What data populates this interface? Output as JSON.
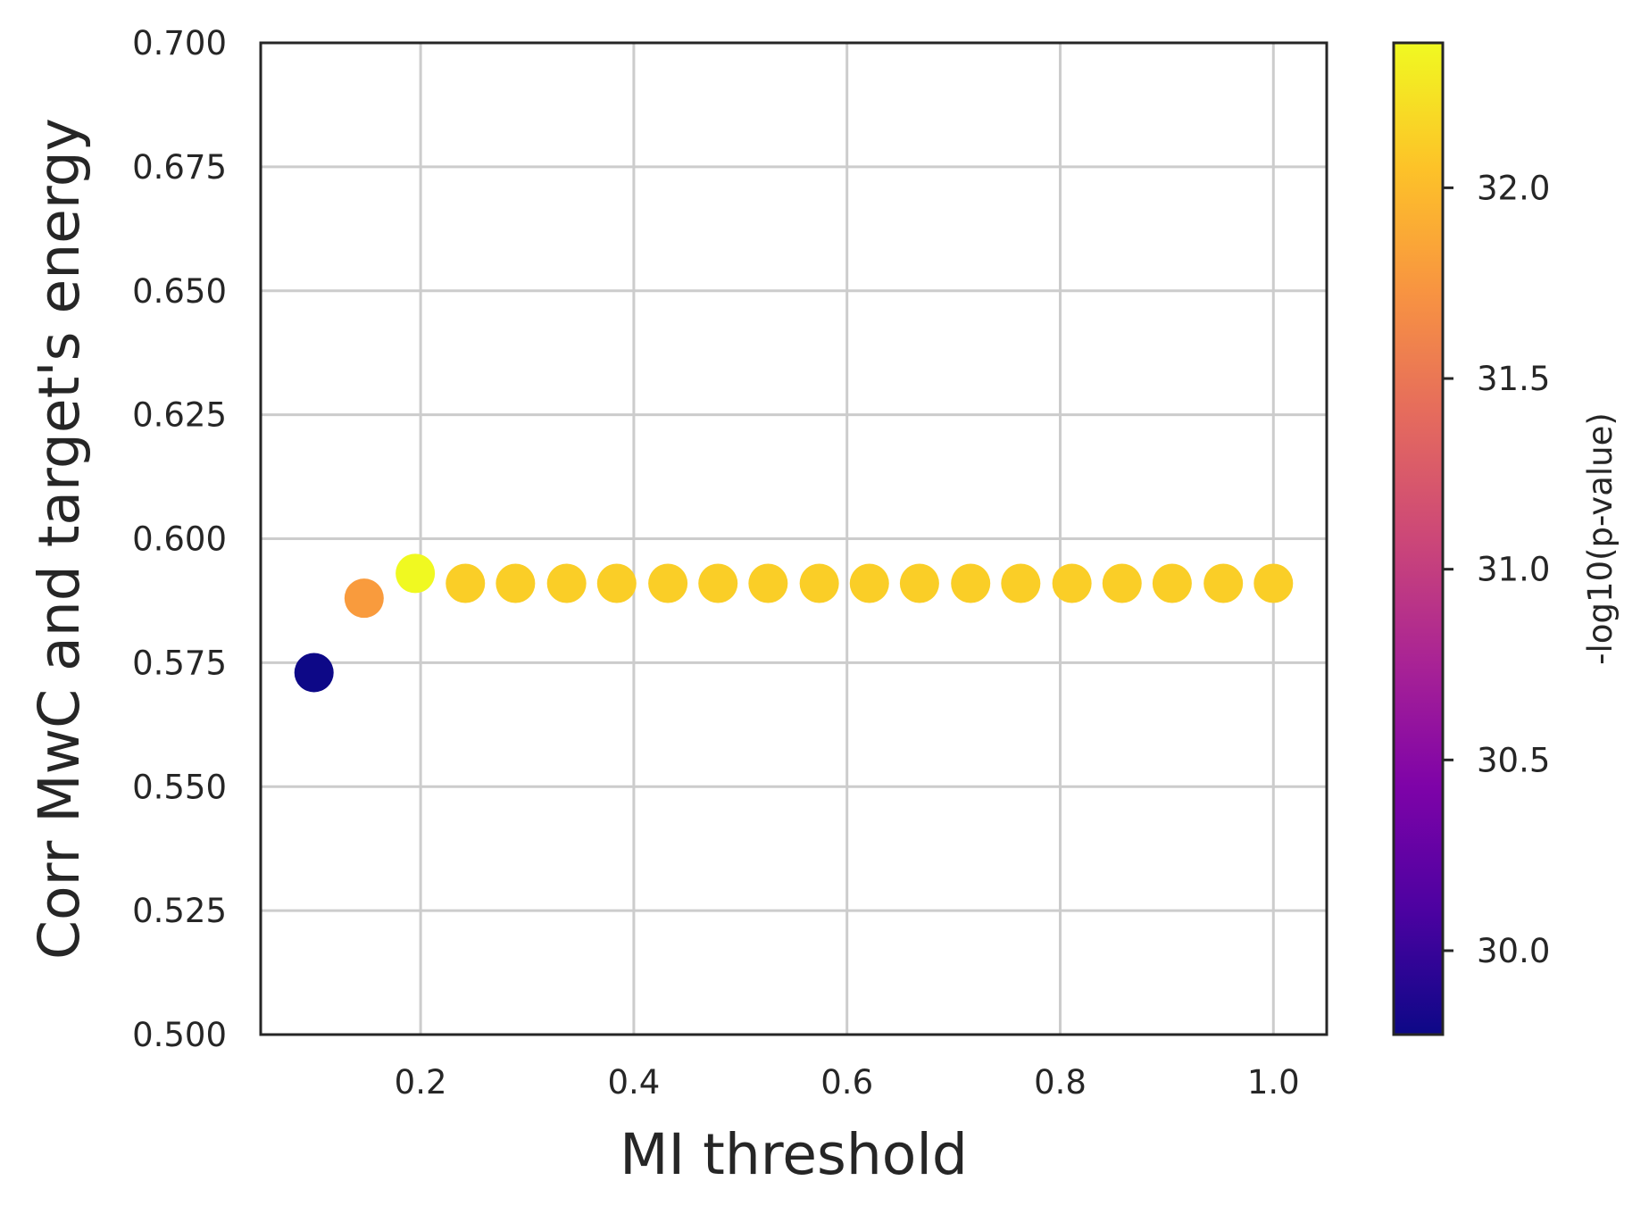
{
  "chart_data": {
    "type": "scatter",
    "xlabel": "MI threshold",
    "ylabel": "Corr MwC and target's energy",
    "xlim": [
      0.05,
      1.05
    ],
    "ylim": [
      0.5,
      0.7
    ],
    "xticks": [
      "0.2",
      "0.4",
      "0.6",
      "0.8",
      "1.0"
    ],
    "yticks": [
      "0.500",
      "0.525",
      "0.550",
      "0.575",
      "0.600",
      "0.625",
      "0.650",
      "0.675",
      "0.700"
    ],
    "grid": true,
    "colormap": "plasma",
    "colorbar": {
      "label": "-log10(p-value)",
      "range": [
        29.78,
        32.38
      ],
      "ticks": [
        "30.0",
        "30.5",
        "31.0",
        "31.5",
        "32.0"
      ]
    },
    "points": [
      {
        "x": 0.1,
        "y": 0.573,
        "c": 29.78
      },
      {
        "x": 0.147,
        "y": 0.588,
        "c": 31.78
      },
      {
        "x": 0.195,
        "y": 0.593,
        "c": 32.38
      },
      {
        "x": 0.242,
        "y": 0.591,
        "c": 32.12
      },
      {
        "x": 0.289,
        "y": 0.591,
        "c": 32.12
      },
      {
        "x": 0.337,
        "y": 0.591,
        "c": 32.12
      },
      {
        "x": 0.384,
        "y": 0.591,
        "c": 32.12
      },
      {
        "x": 0.432,
        "y": 0.591,
        "c": 32.12
      },
      {
        "x": 0.479,
        "y": 0.591,
        "c": 32.12
      },
      {
        "x": 0.526,
        "y": 0.591,
        "c": 32.12
      },
      {
        "x": 0.574,
        "y": 0.591,
        "c": 32.12
      },
      {
        "x": 0.621,
        "y": 0.591,
        "c": 32.12
      },
      {
        "x": 0.668,
        "y": 0.591,
        "c": 32.12
      },
      {
        "x": 0.716,
        "y": 0.591,
        "c": 32.12
      },
      {
        "x": 0.763,
        "y": 0.591,
        "c": 32.12
      },
      {
        "x": 0.811,
        "y": 0.591,
        "c": 32.12
      },
      {
        "x": 0.858,
        "y": 0.591,
        "c": 32.12
      },
      {
        "x": 0.905,
        "y": 0.591,
        "c": 32.12
      },
      {
        "x": 0.953,
        "y": 0.591,
        "c": 32.12
      },
      {
        "x": 1.0,
        "y": 0.591,
        "c": 32.12
      }
    ]
  }
}
